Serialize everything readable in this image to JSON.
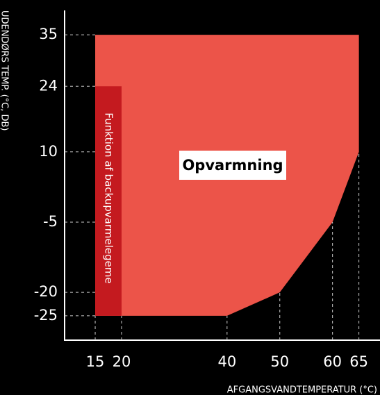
{
  "chart_data": {
    "type": "area",
    "x_label": "AFGANGSVANDTEMPERATUR (°C)",
    "y_label": "UDENDØRS TEMP. (°C, DB)",
    "xlim": [
      9.2,
      69
    ],
    "ylim": [
      -30.2,
      40.2
    ],
    "xticks": [
      15,
      20,
      40,
      50,
      60,
      65
    ],
    "yticks": [
      35,
      24,
      10,
      -5,
      -20,
      -25
    ],
    "series": [
      {
        "name": "Opvarmning",
        "color": "#ec5449",
        "x": [
          15,
          65,
          65,
          60,
          50,
          40,
          15
        ],
        "values": [
          35,
          35,
          10,
          -5,
          -20,
          -25,
          -25
        ]
      },
      {
        "name": "Funktion af backupvarmelegeme",
        "color": "#c41a1f",
        "x": [
          15,
          20,
          20,
          15
        ],
        "values": [
          24,
          24,
          -25,
          -25
        ]
      }
    ]
  }
}
